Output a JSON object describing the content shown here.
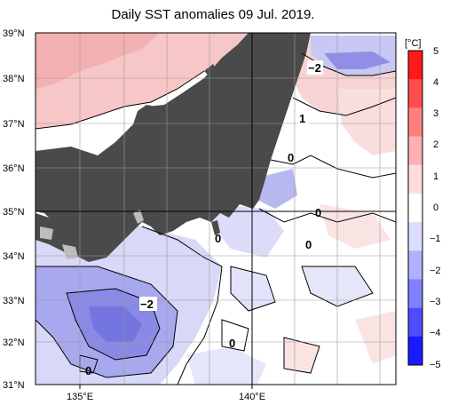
{
  "title": "Daily SST anomalies 09 Jul. 2019.",
  "map": {
    "lat_labels": [
      "39°N",
      "38°N",
      "37°N",
      "36°N",
      "35°N",
      "34°N",
      "33°N",
      "32°N",
      "31°N"
    ],
    "lon_labels": [
      "135°E",
      "140°E"
    ],
    "land_color": "#4a4a4a",
    "contour_labels": [
      "−2",
      "1",
      "0",
      "0",
      "0",
      "0",
      "−2",
      "0",
      "0"
    ]
  },
  "colorbar": {
    "unit": "[°C]",
    "labels": [
      "5",
      "4",
      "3",
      "2",
      "1",
      "0",
      "−1",
      "−2",
      "−3",
      "−4",
      "−5"
    ],
    "colors": [
      "#ff1a1a",
      "#ff4d4d",
      "#ff8080",
      "#ffb0b0",
      "#ffdcdc",
      "#ffffff",
      "#dcdcff",
      "#b0b0ff",
      "#8080ff",
      "#4d4dff",
      "#1a1aff"
    ]
  }
}
